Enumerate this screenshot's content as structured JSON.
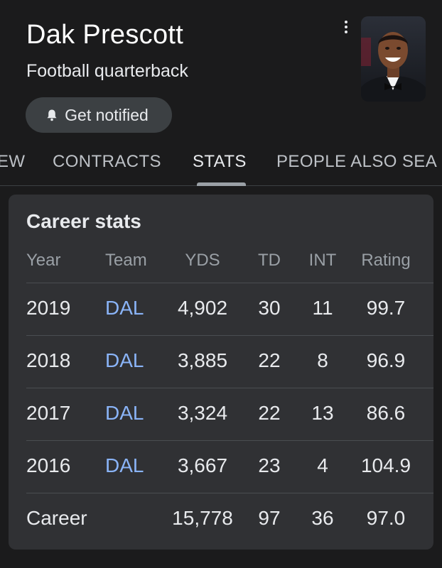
{
  "header": {
    "title": "Dak Prescott",
    "subtitle": "Football quarterback",
    "notify_label": "Get notified",
    "notify_icon": "bell-icon",
    "more_icon": "more-vert-icon"
  },
  "tabs": [
    {
      "label": "OVERVIEW",
      "visible_text": "EW"
    },
    {
      "label": "CONTRACTS"
    },
    {
      "label": "STATS",
      "active": true
    },
    {
      "label": "PEOPLE ALSO SEARCH FOR",
      "visible_text": "PEOPLE ALSO SEA"
    }
  ],
  "career_stats": {
    "title": "Career stats",
    "columns": [
      "Year",
      "Team",
      "YDS",
      "TD",
      "INT",
      "Rating"
    ],
    "rows": [
      {
        "year": "2019",
        "team": "DAL",
        "yds": "4,902",
        "td": "30",
        "int": "11",
        "rating": "99.7"
      },
      {
        "year": "2018",
        "team": "DAL",
        "yds": "3,885",
        "td": "22",
        "int": "8",
        "rating": "96.9"
      },
      {
        "year": "2017",
        "team": "DAL",
        "yds": "3,324",
        "td": "22",
        "int": "13",
        "rating": "86.6"
      },
      {
        "year": "2016",
        "team": "DAL",
        "yds": "3,667",
        "td": "23",
        "int": "4",
        "rating": "104.9"
      }
    ],
    "career": {
      "label": "Career",
      "yds": "15,778",
      "td": "97",
      "int": "36",
      "rating": "97.0"
    }
  },
  "colors": {
    "background": "#1b1b1c",
    "card": "#303134",
    "link": "#8ab4f8",
    "muted": "#9aa0a6"
  }
}
